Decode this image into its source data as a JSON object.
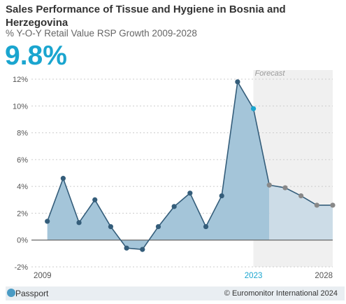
{
  "header": {
    "title": "Sales Performance of Tissue and Hygiene in Bosnia and Herzegovina",
    "subtitle": "% Y-O-Y Retail Value RSP Growth 2009-2028",
    "headline_value": "9.8%"
  },
  "footer": {
    "brand": "Passport",
    "credit": "© Euromonitor International 2024"
  },
  "colors": {
    "accent": "#1aa5cf",
    "line": "#345d7a",
    "actual_fill": "#a4c5d9",
    "forecast_fill": "#ccdce7",
    "forecast_bg": "#f0f0f0",
    "forecast_marker": "#888888"
  },
  "chart_data": {
    "type": "area",
    "x": [
      2009,
      2010,
      2011,
      2012,
      2013,
      2014,
      2015,
      2016,
      2017,
      2018,
      2019,
      2020,
      2021,
      2022,
      2023,
      2024,
      2025,
      2026,
      2027,
      2028
    ],
    "series": [
      {
        "values": [
          null,
          1.4,
          4.6,
          1.3,
          3.0,
          1.0,
          -0.6,
          -0.7,
          1.0,
          2.5,
          3.5,
          1.0,
          3.3,
          11.8,
          9.8,
          4.1,
          3.9,
          3.3,
          2.6,
          2.6
        ]
      }
    ],
    "forecast_start": 2023,
    "forecast_label": "Forecast",
    "highlight_year": 2023,
    "x_tick_labels": [
      "2009",
      "2023",
      "2028"
    ],
    "y_ticks": [
      -2,
      0,
      2,
      4,
      6,
      8,
      10,
      12
    ],
    "y_tick_labels": [
      "-2%",
      "0%",
      "2%",
      "4%",
      "6%",
      "8%",
      "10%",
      "12%"
    ],
    "ylim": [
      -2,
      12
    ],
    "grid": true
  }
}
